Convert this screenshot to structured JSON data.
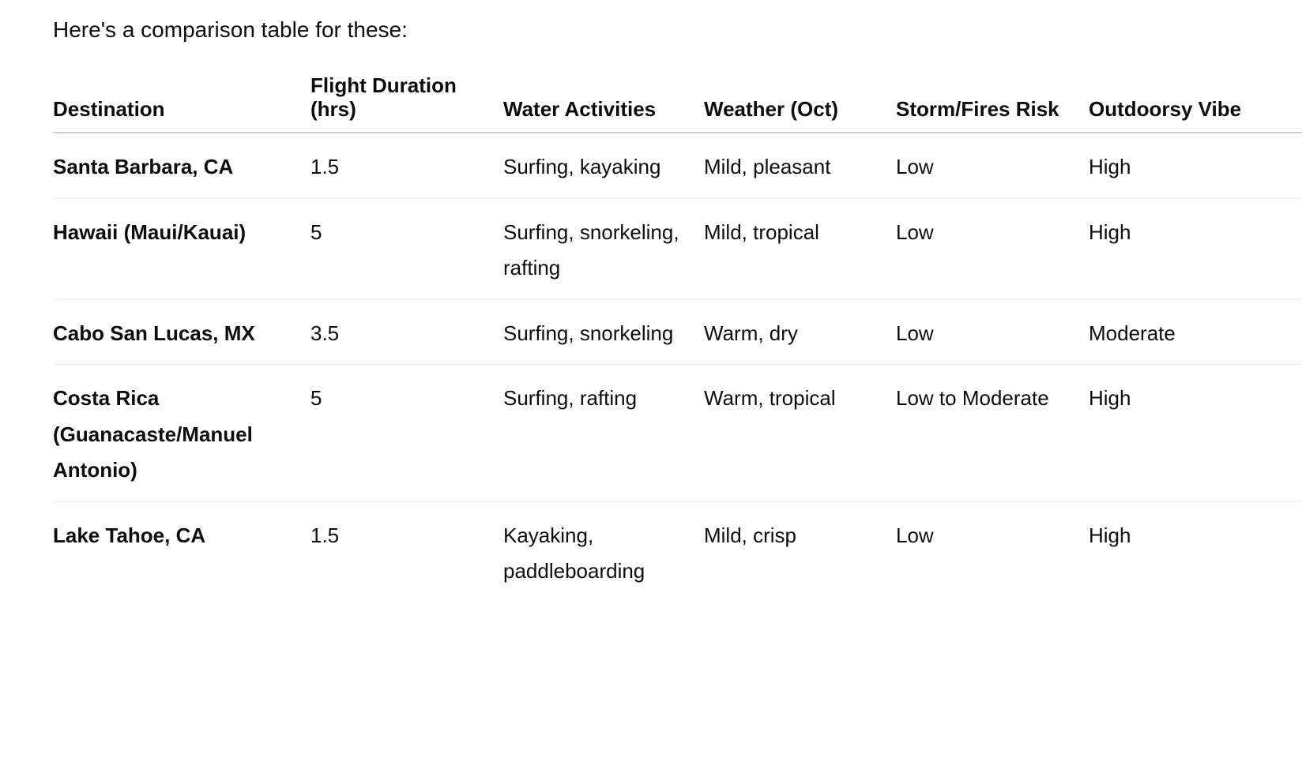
{
  "intro": "Here's a comparison table for these:",
  "table": {
    "headers": [
      "Destination",
      "Flight Duration (hrs)",
      "Water Activities",
      "Weather (Oct)",
      "Storm/Fires Risk",
      "Outdoorsy Vibe"
    ],
    "rows": [
      [
        "Santa Barbara, CA",
        "1.5",
        "Surfing, kayaking",
        "Mild, pleasant",
        "Low",
        "High"
      ],
      [
        "Hawaii (Maui/Kauai)",
        "5",
        "Surfing, snorkeling, rafting",
        "Mild, tropical",
        "Low",
        "High"
      ],
      [
        "Cabo San Lucas, MX",
        "3.5",
        "Surfing, snorkeling",
        "Warm, dry",
        "Low",
        "Moderate"
      ],
      [
        "Costa Rica (Guanacaste/Manuel Antonio)",
        "5",
        "Surfing, rafting",
        "Warm, tropical",
        "Low to Moderate",
        "High"
      ],
      [
        "Lake Tahoe, CA",
        "1.5",
        "Kayaking, paddleboarding",
        "Mild, crisp",
        "Low",
        "High"
      ]
    ]
  }
}
